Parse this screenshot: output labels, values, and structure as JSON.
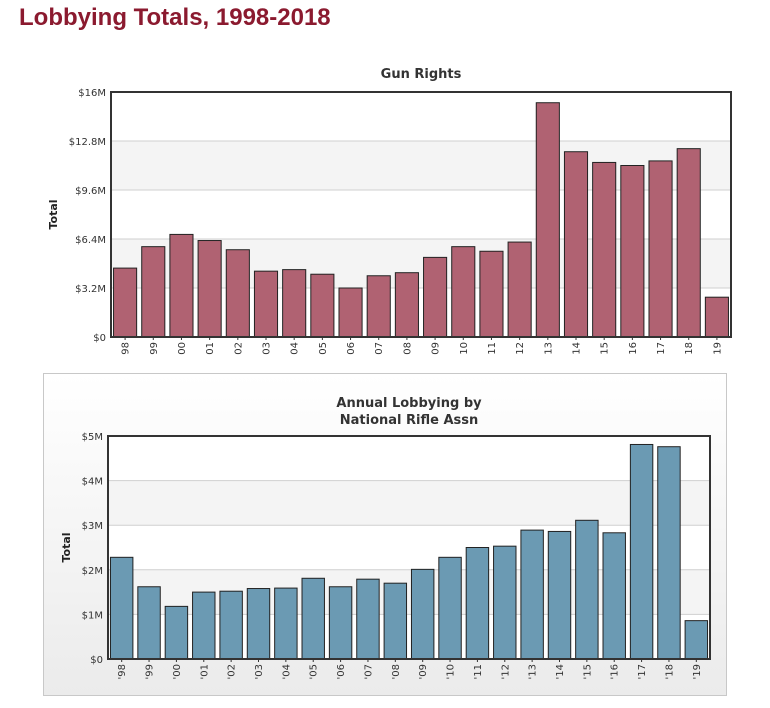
{
  "page": {
    "title": "Lobbying Totals, 1998-2018"
  },
  "colors": {
    "title": "#8b1a2f",
    "gun_bar": "#b06272",
    "nra_bar": "#6b9ab3"
  },
  "chart_data": [
    {
      "type": "bar",
      "title": "Gun Rights",
      "subtitle": "",
      "xlabel": "",
      "ylabel": "Total",
      "ylim": [
        0,
        16000000
      ],
      "yticks": [
        0,
        3200000,
        6400000,
        9600000,
        12800000,
        16000000
      ],
      "ytick_labels": [
        "$0",
        "$3.2M",
        "$6.4M",
        "$9.6M",
        "$12.8M",
        "$16M"
      ],
      "grid": true,
      "categories": [
        "98",
        "99",
        "00",
        "01",
        "02",
        "03",
        "04",
        "05",
        "06",
        "07",
        "08",
        "09",
        "10",
        "11",
        "12",
        "13",
        "14",
        "15",
        "16",
        "17",
        "18",
        "19"
      ],
      "values": [
        4500000,
        5900000,
        6700000,
        6300000,
        5700000,
        4300000,
        4400000,
        4100000,
        3200000,
        4000000,
        4200000,
        5200000,
        5900000,
        5600000,
        6200000,
        15300000,
        12100000,
        11400000,
        11200000,
        11500000,
        12300000,
        2600000
      ]
    },
    {
      "type": "bar",
      "title": "Annual Lobbying by",
      "subtitle": "National Rifle Assn",
      "xlabel": "",
      "ylabel": "Total",
      "ylim": [
        0,
        5000000
      ],
      "yticks": [
        0,
        1000000,
        2000000,
        3000000,
        4000000,
        5000000
      ],
      "ytick_labels": [
        "$0",
        "$1M",
        "$2M",
        "$3M",
        "$4M",
        "$5M"
      ],
      "grid": true,
      "categories": [
        "'98",
        "'99",
        "'00",
        "'01",
        "'02",
        "'03",
        "'04",
        "'05",
        "'06",
        "'07",
        "'08",
        "'09",
        "'10",
        "'11",
        "'12",
        "'13",
        "'14",
        "'15",
        "'16",
        "'17",
        "'18",
        "'19"
      ],
      "values": [
        2280000,
        1620000,
        1180000,
        1500000,
        1520000,
        1580000,
        1590000,
        1810000,
        1620000,
        1790000,
        1700000,
        2010000,
        2280000,
        2500000,
        2530000,
        2890000,
        2860000,
        3110000,
        2830000,
        4810000,
        4760000,
        860000
      ]
    }
  ]
}
